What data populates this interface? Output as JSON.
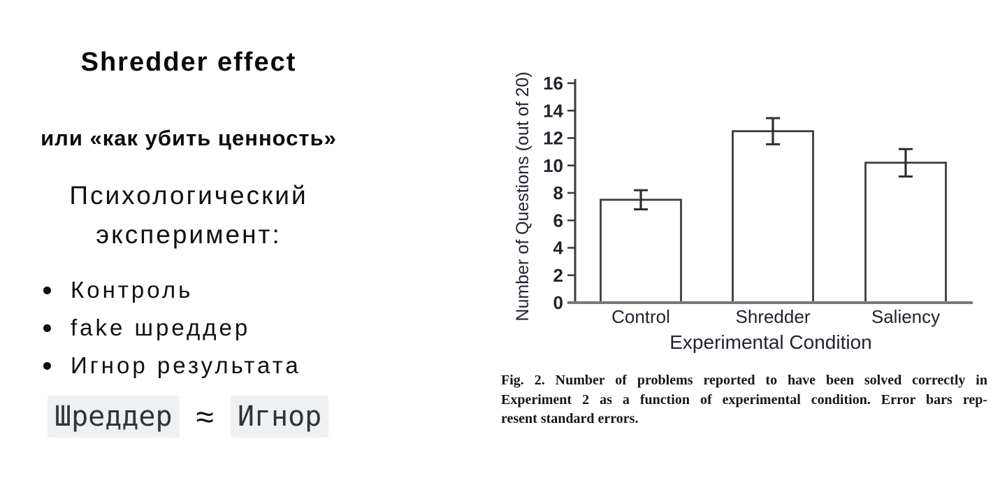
{
  "slide": {
    "title": "Shredder effect",
    "subtitle": "или «как убить ценность»",
    "heading_line1": "Психологический",
    "heading_line2": "эксперимент:",
    "bullets": [
      "Контроль",
      "fake шреддер",
      "Игнор результата"
    ],
    "equation": {
      "left": "Шреддер",
      "operator": "≈",
      "right": "Игнор"
    }
  },
  "figure_caption": {
    "line1": "Fig. 2. Number of problems reported to have been solved correctly in",
    "line2": "Experiment 2 as a function of experimental condition. Error bars rep-",
    "line3": "resent standard errors."
  },
  "chart_data": {
    "type": "bar",
    "categories": [
      "Control",
      "Shredder",
      "Saliency"
    ],
    "values": [
      7.5,
      12.5,
      10.2
    ],
    "errors": [
      0.7,
      0.95,
      1.0
    ],
    "title": "",
    "xlabel": "Experimental Condition",
    "ylabel": "Number of Questions (out of 20)",
    "ylim": [
      0,
      16
    ],
    "ytick_step": 2,
    "grid": false,
    "legend": false,
    "bar_fill": "#ffffff",
    "bar_stroke": "#3d3d3d",
    "error_color": "#2f2f2f",
    "baseline_color": "#7a7a7a",
    "axis_color": "#3d3d3d",
    "label_color": "#20242e"
  }
}
